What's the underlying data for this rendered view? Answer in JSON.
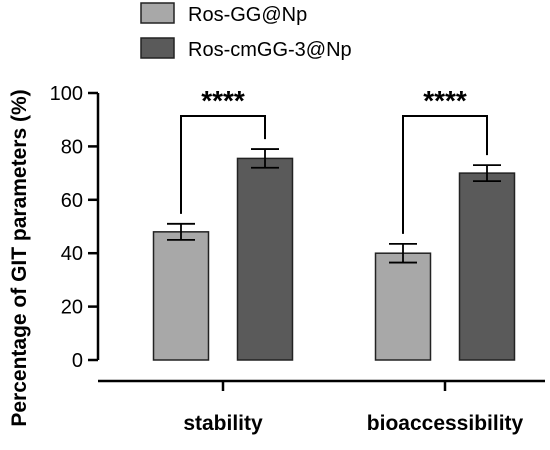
{
  "chart_data": {
    "type": "bar",
    "title": "",
    "xlabel": "",
    "ylabel": "Percentage of GIT parameters (%)",
    "ylim": [
      0,
      100
    ],
    "yticks": [
      0,
      20,
      40,
      60,
      80,
      100
    ],
    "categories": [
      "stability",
      "bioaccessibility"
    ],
    "series": [
      {
        "name": "Ros-GG@Np",
        "values": [
          48,
          40
        ],
        "errors": [
          3,
          3.5
        ],
        "color": "#a8a8a8"
      },
      {
        "name": "Ros-cmGG-3@Np",
        "values": [
          75.5,
          70
        ],
        "errors": [
          3.5,
          3
        ],
        "color": "#5a5a5a"
      }
    ],
    "significance": [
      "****",
      "****"
    ],
    "legend_position": "top",
    "grid": false
  }
}
